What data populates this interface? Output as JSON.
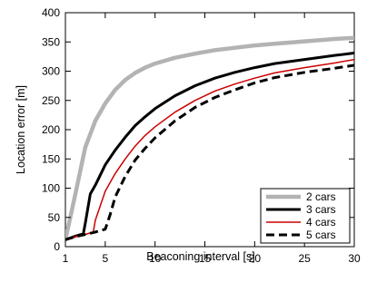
{
  "chart_data": {
    "type": "line",
    "xlabel": "Beaconing interval [s]",
    "ylabel": "Location error [m]",
    "xlim": [
      1,
      30
    ],
    "ylim": [
      0,
      400
    ],
    "xticks": [
      1,
      5,
      10,
      15,
      20,
      25,
      30
    ],
    "yticks": [
      0,
      50,
      100,
      150,
      200,
      250,
      300,
      350,
      400
    ],
    "grid": false,
    "legend_position": "bottom-right",
    "series": [
      {
        "name": "2 cars",
        "color": "#b3b3b3",
        "style": "solid-thick",
        "x": [
          1,
          2,
          3,
          4,
          5,
          6,
          7,
          8,
          9,
          10,
          12,
          14,
          16,
          18,
          20,
          22,
          25,
          28,
          30
        ],
        "y": [
          12,
          90,
          170,
          215,
          245,
          268,
          285,
          297,
          306,
          313,
          323,
          330,
          336,
          340,
          344,
          347,
          351,
          355,
          357
        ]
      },
      {
        "name": "3 cars",
        "color": "#000000",
        "style": "solid-thick",
        "x": [
          1,
          2,
          2.8,
          3,
          3.5,
          4,
          5,
          6,
          7,
          8,
          9,
          10,
          12,
          14,
          16,
          18,
          20,
          22,
          25,
          28,
          30
        ],
        "y": [
          12,
          18,
          22,
          40,
          90,
          105,
          140,
          165,
          187,
          207,
          222,
          236,
          258,
          275,
          288,
          298,
          306,
          313,
          320,
          327,
          331
        ]
      },
      {
        "name": "4 cars",
        "color": "#cc0000",
        "style": "solid-thin",
        "x": [
          1,
          2,
          3,
          3.8,
          4,
          5,
          6,
          7,
          8,
          9,
          10,
          12,
          14,
          16,
          18,
          20,
          22,
          25,
          28,
          30
        ],
        "y": [
          12,
          17,
          21,
          25,
          45,
          95,
          125,
          150,
          172,
          190,
          205,
          230,
          250,
          266,
          278,
          288,
          297,
          306,
          314,
          320
        ]
      },
      {
        "name": "5 cars",
        "color": "#000000",
        "style": "dashed-thick",
        "x": [
          1,
          2,
          3,
          4,
          5,
          5.5,
          6,
          7,
          8,
          9,
          10,
          12,
          14,
          16,
          18,
          20,
          22,
          25,
          28,
          30
        ],
        "y": [
          12,
          17,
          21,
          25,
          30,
          55,
          85,
          120,
          148,
          168,
          186,
          215,
          238,
          255,
          268,
          280,
          289,
          298,
          305,
          310
        ]
      }
    ]
  }
}
